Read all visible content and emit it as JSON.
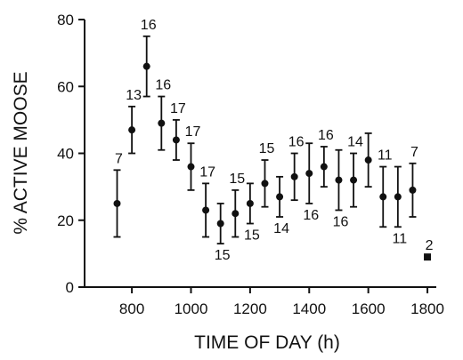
{
  "chart_data": {
    "type": "errorbar",
    "x_label": "TIME OF DAY (h)",
    "y_label": "% ACTIVE MOOSE",
    "xlim": [
      640,
      1830
    ],
    "ylim": [
      0,
      80
    ],
    "xticks": [
      800,
      1000,
      1200,
      1400,
      1600,
      1800
    ],
    "yticks": [
      0,
      20,
      40,
      60,
      80
    ],
    "series": [
      {
        "color": "#111111",
        "marker": "circle",
        "x": [
          750,
          800,
          850,
          900,
          950,
          1000,
          1050,
          1100,
          1150,
          1200,
          1250,
          1300,
          1350,
          1400,
          1450,
          1500,
          1550,
          1600,
          1650,
          1700,
          1750
        ],
        "values": [
          25,
          47,
          66,
          49,
          44,
          36,
          23,
          19,
          22,
          25,
          31,
          27,
          33,
          34,
          36,
          32,
          32,
          38,
          27,
          27,
          29
        ],
        "errors": [
          10,
          7,
          9,
          8,
          6,
          7,
          8,
          6,
          7,
          6,
          7,
          6,
          7,
          9,
          6,
          9,
          8,
          8,
          9,
          9,
          8
        ],
        "labels": [
          7,
          13,
          16,
          16,
          17,
          17,
          17,
          15,
          15,
          15,
          15,
          14,
          16,
          16,
          16,
          16,
          14,
          null,
          11,
          11,
          7
        ],
        "label_positions": [
          "above",
          "above",
          "above",
          "above",
          "above",
          "above",
          "above",
          "below",
          "above",
          "below",
          "above",
          "below",
          "above",
          "below",
          "above",
          "below",
          "above",
          "above",
          "above",
          "below",
          "above"
        ]
      },
      {
        "color": "#111111",
        "marker": "square",
        "x": [
          1800
        ],
        "values": [
          9
        ],
        "labels": [
          2
        ],
        "label_positions": [
          "above"
        ]
      }
    ]
  }
}
